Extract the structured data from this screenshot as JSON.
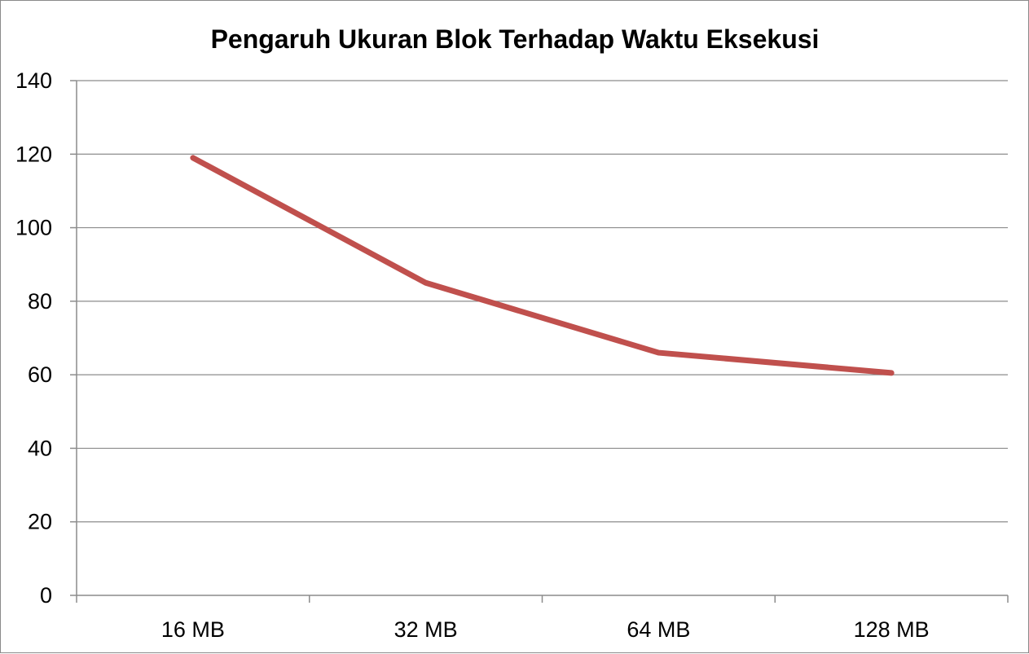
{
  "chart_data": {
    "type": "line",
    "title": "Pengaruh Ukuran Blok Terhadap Waktu Eksekusi",
    "categories": [
      "16 MB",
      "32 MB",
      "64 MB",
      "128 MB"
    ],
    "series": [
      {
        "values": [
          119,
          85,
          66,
          60.5
        ],
        "color": "#c0504d"
      }
    ],
    "ylim": [
      0,
      140
    ],
    "yticks": [
      0,
      20,
      40,
      60,
      80,
      100,
      120,
      140
    ],
    "grid": true,
    "legend": "none"
  }
}
